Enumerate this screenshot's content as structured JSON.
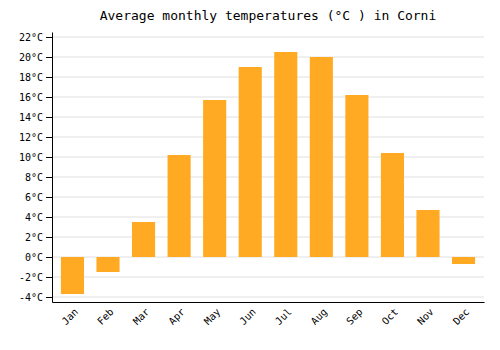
{
  "chart_data": {
    "type": "bar",
    "title": "Average monthly temperatures (°C ) in Corni",
    "categories": [
      "Jan",
      "Feb",
      "Mar",
      "Apr",
      "May",
      "Jun",
      "Jul",
      "Aug",
      "Sep",
      "Oct",
      "Nov",
      "Dec"
    ],
    "values": [
      -3.7,
      -1.5,
      3.5,
      10.2,
      15.7,
      19.0,
      20.5,
      20.0,
      16.2,
      10.4,
      4.7,
      -0.7
    ],
    "color": "#FFAA22",
    "ylim": [
      -4.5,
      22.5
    ],
    "yticks": [
      {
        "value": -4,
        "label": "-4°C"
      },
      {
        "value": -2,
        "label": "-2°C"
      },
      {
        "value": 0,
        "label": "0°C"
      },
      {
        "value": 2,
        "label": "2°C"
      },
      {
        "value": 4,
        "label": "4°C"
      },
      {
        "value": 6,
        "label": "6°C"
      },
      {
        "value": 8,
        "label": "8°C"
      },
      {
        "value": 10,
        "label": "10°C"
      },
      {
        "value": 12,
        "label": "12°C"
      },
      {
        "value": 14,
        "label": "14°C"
      },
      {
        "value": 16,
        "label": "16°C"
      },
      {
        "value": 18,
        "label": "18°C"
      },
      {
        "value": 20,
        "label": "20°C"
      },
      {
        "value": 22,
        "label": "22°C"
      }
    ],
    "grid": true
  }
}
